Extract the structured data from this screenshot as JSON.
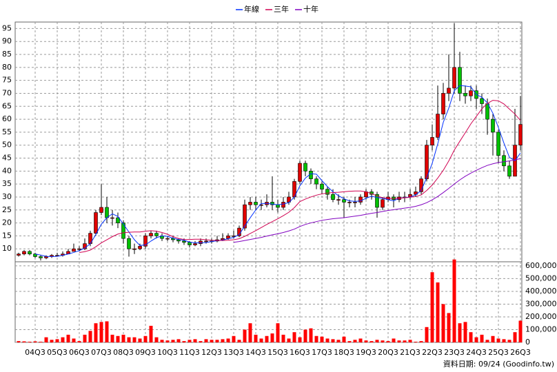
{
  "chart_data": {
    "type": "candlestick",
    "categories": [
      null,
      null,
      null,
      "04Q3",
      null,
      null,
      null,
      "05Q3",
      null,
      null,
      null,
      "06Q3",
      null,
      null,
      null,
      "07Q3",
      null,
      null,
      null,
      "08Q3",
      null,
      null,
      null,
      "09Q3",
      null,
      null,
      null,
      "10Q3",
      null,
      null,
      null,
      "11Q3",
      null,
      null,
      null,
      "12Q3",
      null,
      null,
      null,
      "13Q3",
      null,
      null,
      null,
      "14Q3",
      null,
      null,
      null,
      "15Q3",
      null,
      null,
      null,
      "16Q3",
      null,
      null,
      null,
      "17Q3",
      null,
      null,
      null,
      "18Q3",
      null,
      null,
      null,
      "19Q3",
      null,
      null,
      null,
      "20Q3",
      null,
      null,
      null,
      "21Q3",
      null,
      null,
      null,
      "22Q3",
      null,
      null,
      null,
      "23Q3",
      null,
      null,
      null,
      "24Q3",
      null,
      null,
      null,
      "25Q3",
      null,
      null,
      null,
      "26Q3"
    ],
    "open": [
      7.5,
      8,
      9,
      8,
      7,
      6.5,
      7,
      7.5,
      7.5,
      8,
      9,
      10,
      10,
      12,
      16,
      24,
      26,
      22,
      22,
      20,
      14,
      10,
      10,
      11,
      15,
      16,
      15,
      14,
      14,
      13.5,
      13,
      12.5,
      11.5,
      12,
      13,
      13,
      13,
      13.5,
      14,
      15,
      15,
      18,
      27,
      28,
      27,
      27,
      28,
      27,
      26,
      28,
      30,
      36,
      43,
      40,
      37,
      35,
      33,
      31,
      29,
      29,
      28,
      28,
      28,
      30,
      32,
      31,
      26,
      29,
      30,
      29,
      30,
      30,
      31,
      32,
      37,
      50,
      53,
      62,
      70,
      72,
      80,
      70,
      69,
      71,
      68,
      66,
      60,
      55,
      46,
      42,
      38,
      50
    ],
    "high": [
      8.5,
      9.5,
      9.5,
      8.5,
      7.5,
      7.5,
      8,
      8.5,
      9,
      10,
      12,
      11,
      14,
      17,
      25,
      35,
      30,
      25,
      24,
      21,
      15,
      12,
      12,
      16,
      17,
      17,
      16,
      15,
      15,
      14,
      14,
      13,
      13,
      14,
      14,
      14,
      15,
      16,
      16,
      17,
      19,
      29,
      30,
      30,
      29,
      31,
      38,
      29,
      30,
      32,
      37,
      44,
      44,
      41,
      38,
      36,
      34,
      33,
      31,
      30,
      29,
      30,
      31,
      33,
      33,
      32,
      30,
      32,
      31,
      32,
      32,
      33,
      34,
      38,
      52,
      58,
      73,
      74,
      85,
      97,
      86,
      73,
      73,
      73,
      70,
      68,
      62,
      56,
      48,
      44,
      64,
      69
    ],
    "low": [
      7,
      7.5,
      7.5,
      6.5,
      5.5,
      6,
      6.5,
      7,
      7,
      8,
      9,
      9,
      9.5,
      11,
      15,
      23,
      20,
      19,
      18,
      12,
      7,
      8,
      9.5,
      10,
      14,
      14,
      13,
      13,
      12.5,
      12,
      11.5,
      10.5,
      11,
      11,
      12,
      12,
      12.5,
      13,
      13.5,
      14,
      14.5,
      17,
      25,
      25,
      25,
      26,
      25,
      24,
      25,
      27,
      29,
      35,
      38,
      35,
      33,
      31,
      29,
      28,
      27,
      22,
      26,
      26,
      27,
      29,
      29,
      22,
      25,
      28,
      26,
      28,
      28,
      29,
      30,
      31,
      36,
      48,
      52,
      60,
      67,
      70,
      67,
      66,
      67,
      64,
      62,
      54,
      46,
      43,
      40,
      37,
      38,
      48
    ],
    "close": [
      8,
      9,
      8,
      7,
      6.5,
      7,
      7.5,
      7.5,
      8,
      9,
      10,
      10,
      12,
      16,
      24,
      26,
      22,
      22,
      20,
      14,
      10,
      10,
      11,
      15,
      16,
      15,
      14,
      14,
      13.5,
      13,
      12.5,
      11.5,
      12,
      13,
      13,
      13,
      13.5,
      14,
      15,
      15,
      18,
      27,
      28,
      27,
      27,
      28,
      27,
      26,
      28,
      30,
      36,
      43,
      40,
      37,
      35,
      33,
      31,
      29,
      29,
      28,
      28,
      28,
      30,
      32,
      31,
      26,
      29,
      30,
      29,
      30,
      30,
      31,
      32,
      37,
      50,
      53,
      62,
      70,
      72,
      80,
      70,
      69,
      71,
      68,
      66,
      60,
      55,
      46,
      42,
      38,
      50,
      58
    ],
    "up_color": "#e00000",
    "down_color": "#00c000",
    "series": [
      {
        "name": "年線",
        "color": "#0030ff",
        "values": [
          null,
          null,
          null,
          8,
          7.6,
          7.1,
          7,
          7.1,
          7.5,
          8,
          8.6,
          9.3,
          10.3,
          12,
          15.5,
          19.5,
          22,
          23.5,
          22.5,
          19.5,
          16.5,
          13.5,
          11.3,
          11.5,
          13,
          14.3,
          15,
          14.8,
          14.1,
          13.6,
          13.3,
          12.6,
          12.3,
          12.3,
          12.4,
          12.8,
          13.1,
          13.4,
          13.9,
          14.4,
          15.5,
          18.8,
          22,
          25,
          27.5,
          27.5,
          27.3,
          27,
          27.3,
          27.8,
          30,
          34.3,
          37.3,
          39,
          38.8,
          36.3,
          34,
          32,
          30.5,
          29.3,
          28.5,
          28.3,
          28.5,
          29.5,
          30.3,
          29.8,
          29.5,
          29,
          28.5,
          29.5,
          29.8,
          30,
          30.8,
          32.5,
          37.5,
          43,
          50.5,
          58.8,
          64.3,
          71,
          73,
          72.8,
          72.5,
          69.5,
          68.5,
          66.3,
          62.3,
          56.8,
          50.8,
          45.3,
          44,
          47
        ]
      },
      {
        "name": "三年",
        "color": "#d00050",
        "values": [
          null,
          null,
          null,
          null,
          null,
          null,
          null,
          null,
          null,
          null,
          null,
          8.6,
          8.9,
          9.5,
          10.8,
          12.3,
          13.5,
          14.7,
          15.7,
          16.2,
          16.4,
          16.5,
          16.5,
          16.8,
          17,
          16.8,
          16.3,
          15.6,
          14.7,
          14,
          13.6,
          13.6,
          13.7,
          13.7,
          13.5,
          13.3,
          13.2,
          13.2,
          13.3,
          13.5,
          13.9,
          14.8,
          15.9,
          17,
          18.2,
          19.4,
          20.5,
          21.6,
          22.8,
          24.1,
          25.9,
          28.2,
          29.2,
          30,
          30.7,
          31.2,
          31.5,
          31.7,
          31.8,
          32,
          32.2,
          32.3,
          32.3,
          32,
          31.3,
          30.4,
          29.7,
          29.5,
          29.4,
          29.5,
          29.7,
          29.9,
          30.2,
          30.8,
          32.5,
          34.6,
          37.3,
          40.3,
          43.9,
          48.1,
          51.5,
          54.8,
          58.2,
          61.1,
          64,
          66.1,
          67.3,
          67.1,
          65.9,
          63.9,
          62,
          59.5
        ]
      },
      {
        "name": "十年",
        "color": "#8000c0",
        "values": [
          null,
          null,
          null,
          null,
          null,
          null,
          null,
          null,
          null,
          null,
          null,
          null,
          null,
          null,
          null,
          null,
          null,
          null,
          null,
          null,
          null,
          null,
          null,
          null,
          null,
          null,
          null,
          null,
          null,
          null,
          null,
          null,
          null,
          null,
          null,
          null,
          null,
          null,
          null,
          12.5,
          12.8,
          13.2,
          13.6,
          14,
          14.4,
          14.9,
          15.4,
          15.8,
          16.3,
          16.9,
          17.6,
          18.6,
          19.4,
          20,
          20.5,
          21,
          21.3,
          21.6,
          21.8,
          22,
          22.3,
          22.6,
          22.9,
          23.3,
          23.7,
          24,
          24.4,
          24.8,
          25.1,
          25.4,
          25.7,
          26,
          26.4,
          27,
          27.8,
          28.9,
          30.2,
          31.7,
          33.3,
          35,
          36.6,
          38,
          39.2,
          40.3,
          41.3,
          42.2,
          42.8,
          43.3,
          43.6,
          43.9,
          44.3,
          44.8
        ]
      }
    ],
    "ylim": [
      5,
      97.5
    ],
    "yticks": [
      10,
      15,
      20,
      25,
      30,
      35,
      40,
      45,
      50,
      55,
      60,
      65,
      70,
      75,
      80,
      85,
      90,
      95
    ],
    "grid": true,
    "legend": "top",
    "volume": {
      "color": "#ff0000",
      "values": [
        10000,
        8000,
        5000,
        8000,
        5000,
        40000,
        20000,
        25000,
        40000,
        60000,
        30000,
        10000,
        60000,
        90000,
        150000,
        160000,
        165000,
        60000,
        50000,
        60000,
        40000,
        40000,
        30000,
        50000,
        130000,
        40000,
        20000,
        15000,
        20000,
        25000,
        10000,
        20000,
        25000,
        10000,
        25000,
        20000,
        20000,
        25000,
        30000,
        50000,
        20000,
        100000,
        150000,
        60000,
        30000,
        50000,
        70000,
        150000,
        60000,
        30000,
        80000,
        40000,
        100000,
        110000,
        50000,
        45000,
        30000,
        25000,
        20000,
        45000,
        10000,
        20000,
        30000,
        15000,
        10000,
        20000,
        15000,
        10000,
        30000,
        15000,
        15000,
        20000,
        5000,
        10000,
        120000,
        550000,
        470000,
        300000,
        230000,
        650000,
        150000,
        160000,
        80000,
        40000,
        60000,
        20000,
        50000,
        30000,
        25000,
        20000,
        80000,
        170000
      ],
      "ylim": [
        0,
        632000
      ],
      "yticks": [
        0,
        {
          "value": 100000,
          "label": "100,000"
        },
        {
          "value": 200000,
          "label": "200,000"
        },
        {
          "value": 300000,
          "label": "300,000"
        },
        {
          "value": 400000,
          "label": "400,000"
        },
        {
          "value": 500000,
          "label": "500,000"
        },
        {
          "value": 600000,
          "label": "600,000"
        }
      ]
    },
    "footer": "資料日期: 09/24 (Goodinfo.tw)"
  }
}
